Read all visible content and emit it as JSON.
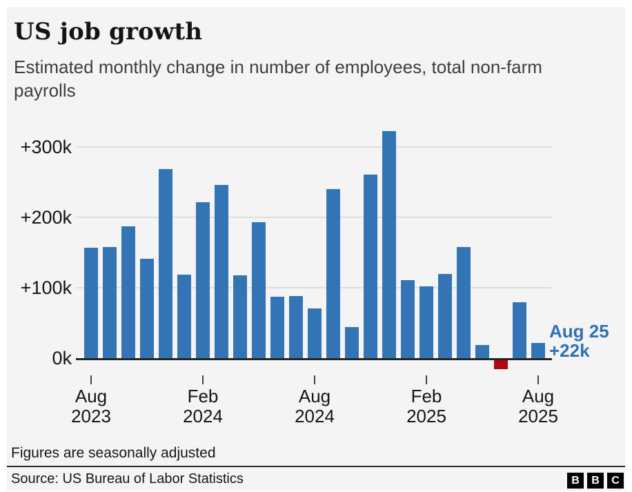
{
  "header": {
    "title": "US job growth",
    "subtitle": "Estimated monthly change in number of employees, total non-farm payrolls"
  },
  "chart_data": {
    "type": "bar",
    "title": "US job growth",
    "subtitle": "Estimated monthly change in number of employees, total non-farm payrolls",
    "unit": "thousands of employees (k)",
    "categories": [
      "Aug 2023",
      "Sep 2023",
      "Oct 2023",
      "Nov 2023",
      "Dec 2023",
      "Jan 2024",
      "Feb 2024",
      "Mar 2024",
      "Apr 2024",
      "May 2024",
      "Jun 2024",
      "Jul 2024",
      "Aug 2024",
      "Sep 2024",
      "Oct 2024",
      "Nov 2024",
      "Dec 2024",
      "Jan 2025",
      "Feb 2025",
      "Mar 2025",
      "Apr 2025",
      "May 2025",
      "Jun 2025",
      "Jul 2025",
      "Aug 2025"
    ],
    "values": [
      157,
      158,
      187,
      141,
      269,
      119,
      222,
      246,
      118,
      193,
      87,
      88,
      71,
      240,
      44,
      261,
      323,
      111,
      102,
      120,
      158,
      19,
      -13,
      79,
      22
    ],
    "ylim": [
      -20,
      340
    ],
    "grid": true,
    "y_ticks": [
      {
        "label": "+300k",
        "value": 300
      },
      {
        "label": "+200k",
        "value": 200
      },
      {
        "label": "+100k",
        "value": 100
      },
      {
        "label": "0k",
        "value": 0
      }
    ],
    "x_ticks": [
      {
        "index": 0,
        "line1": "Aug",
        "line2": "2023"
      },
      {
        "index": 6,
        "line1": "Feb",
        "line2": "2024"
      },
      {
        "index": 12,
        "line1": "Aug",
        "line2": "2024"
      },
      {
        "index": 18,
        "line1": "Feb",
        "line2": "2025"
      },
      {
        "index": 24,
        "line1": "Aug",
        "line2": "2025"
      }
    ],
    "annotation": {
      "line1": "Aug 25",
      "line2": "+22k"
    },
    "colors": {
      "bar_positive": "#3375b4",
      "bar_negative": "#b20610",
      "annotation": "#2e71b8",
      "gridline": "#dddddd",
      "baseline": "#262626"
    },
    "legend": null
  },
  "footer": {
    "note": "Figures are seasonally adjusted",
    "source": "Source: US Bureau of Labor Statistics",
    "logo_letters": [
      "B",
      "B",
      "C"
    ]
  }
}
